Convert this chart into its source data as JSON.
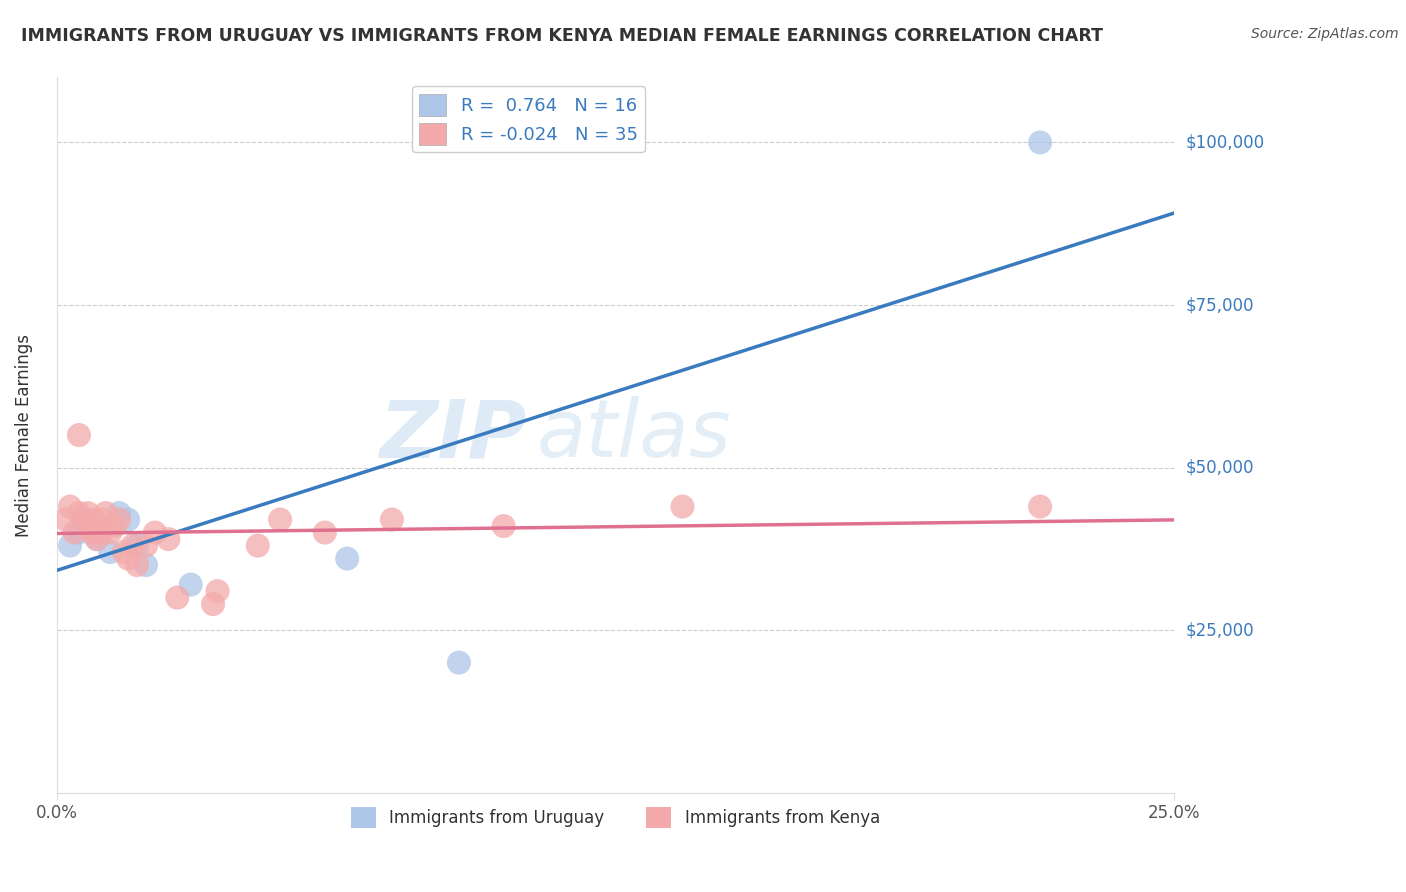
{
  "title": "IMMIGRANTS FROM URUGUAY VS IMMIGRANTS FROM KENYA MEDIAN FEMALE EARNINGS CORRELATION CHART",
  "source": "Source: ZipAtlas.com",
  "ylabel": "Median Female Earnings",
  "xlim": [
    0.0,
    25.0
  ],
  "ylim": [
    0,
    110000
  ],
  "yticks": [
    0,
    25000,
    50000,
    75000,
    100000
  ],
  "watermark_zip": "ZIP",
  "watermark_atlas": "atlas",
  "uruguay_color": "#aec6e8",
  "kenya_color": "#f4aaaa",
  "uruguay_line_color": "#3a7abf",
  "kenya_line_color": "#e07090",
  "uruguay_R": 0.764,
  "uruguay_N": 16,
  "kenya_R": -0.024,
  "kenya_N": 35,
  "legend_label_1": "Immigrants from Uruguay",
  "legend_label_2": "Immigrants from Kenya",
  "title_color": "#333333",
  "axis_label_color": "#333333",
  "tick_label_color": "#3a7abf",
  "grid_color": "#cccccc",
  "background_color": "#ffffff",
  "uruguay_x": [
    0.3,
    0.5,
    0.6,
    0.7,
    0.8,
    0.9,
    1.0,
    1.2,
    1.4,
    1.6,
    1.8,
    2.0,
    3.0,
    6.5,
    9.0,
    22.0
  ],
  "uruguay_y": [
    38000,
    40000,
    42000,
    41000,
    40000,
    39000,
    41000,
    37000,
    43000,
    42000,
    38000,
    35000,
    32000,
    36000,
    20000,
    100000
  ],
  "kenya_x": [
    0.2,
    0.3,
    0.4,
    0.5,
    0.5,
    0.6,
    0.7,
    0.7,
    0.8,
    0.8,
    0.9,
    0.9,
    1.0,
    1.0,
    1.1,
    1.2,
    1.3,
    1.4,
    1.5,
    1.6,
    1.7,
    1.8,
    2.0,
    2.2,
    2.5,
    2.7,
    3.5,
    3.6,
    4.5,
    5.0,
    6.0,
    7.5,
    10.0,
    14.0,
    22.0
  ],
  "kenya_y": [
    42000,
    44000,
    40000,
    43000,
    55000,
    42000,
    41000,
    43000,
    40000,
    42000,
    39000,
    41000,
    40000,
    42000,
    43000,
    40000,
    41000,
    42000,
    37000,
    36000,
    38000,
    35000,
    38000,
    40000,
    39000,
    30000,
    29000,
    31000,
    38000,
    42000,
    40000,
    42000,
    41000,
    44000,
    44000
  ]
}
